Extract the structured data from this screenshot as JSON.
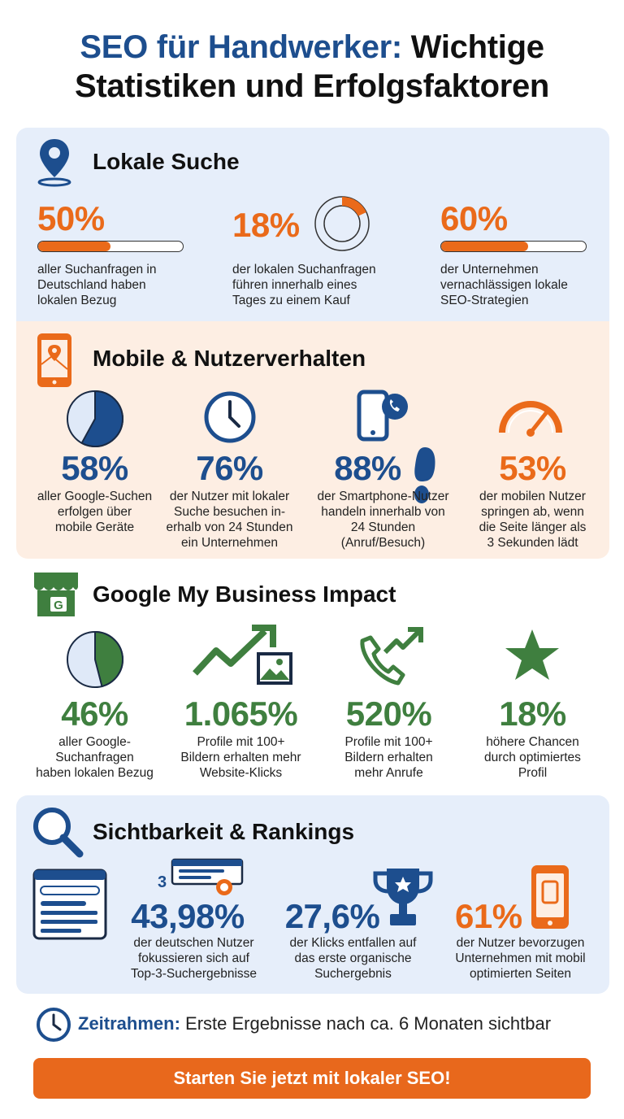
{
  "title": {
    "highlight": "SEO für Handwerker:",
    "rest_line1": " Wichtige",
    "line2": "Statistiken und Erfolgsfaktoren"
  },
  "colors": {
    "blue": "#1d4e8e",
    "orange": "#ea6a1a",
    "green": "#3f7f3f",
    "panel_blue": "#e6eefa",
    "panel_peach": "#fdeee3"
  },
  "local_search": {
    "title": "Lokale Suche",
    "icon": "map-pin-icon",
    "stats": [
      {
        "value": "50%",
        "fraction": 0.5,
        "desc": [
          "aller Suchanfragen in",
          "Deutschland haben",
          "lokalen Bezug"
        ]
      },
      {
        "value": "18%",
        "fraction": 0.18,
        "desc": [
          "der lokalen Suchanfragen",
          "führen innerhalb eines",
          "Tages zu einem Kauf"
        ]
      },
      {
        "value": "60%",
        "fraction": 0.6,
        "desc": [
          "der Unternehmen",
          "vernachlässigen lokale",
          "SEO-Strategien"
        ]
      }
    ]
  },
  "mobile": {
    "title": "Mobile & Nutzerverhalten",
    "icon": "smartphone-map-icon",
    "stats": [
      {
        "value": "58%",
        "fraction": 0.58,
        "icon": "pie-chart-icon",
        "desc": [
          "aller Google-Suchen",
          "erfolgen über",
          "mobile Geräte"
        ]
      },
      {
        "value": "76%",
        "icon": "clock-icon",
        "desc": [
          "der Nutzer mit lokaler",
          "Suche besuchen in-",
          "erhalb von 24 Stunden",
          "ein Unternehmen"
        ]
      },
      {
        "value": "88%",
        "icon": "phone-call-footprint-icon",
        "desc": [
          "der Smartphone-Nutzer",
          "handeln innerhalb von",
          "24 Stunden",
          "(Anruf/Besuch)"
        ]
      },
      {
        "value": "53%",
        "icon": "speedometer-icon",
        "desc": [
          "der mobilen Nutzer",
          "springen ab, wenn",
          "die Seite länger als",
          "3 Sekunden lädt"
        ]
      }
    ]
  },
  "gmb": {
    "title": "Google My Business Impact",
    "icon": "google-store-icon",
    "stats": [
      {
        "value": "46%",
        "fraction": 0.46,
        "icon": "pie-chart-icon",
        "desc": [
          "aller Google-",
          "Suchanfragen",
          "haben lokalen Bezug"
        ]
      },
      {
        "value": "1.065%",
        "icon": "trend-image-icon",
        "desc": [
          "Profile mit 100+",
          "Bildern erhalten mehr",
          "Website-Klicks"
        ]
      },
      {
        "value": "520%",
        "icon": "phone-trend-icon",
        "desc": [
          "Profile mit 100+",
          "Bildern erhalten",
          "mehr Anrufe"
        ]
      },
      {
        "value": "18%",
        "icon": "star-icon",
        "desc": [
          "höhere Chancen",
          "durch optimiertes",
          "Profil"
        ]
      }
    ]
  },
  "visibility": {
    "title": "Sichtbarkeit & Rankings",
    "icon": "magnifier-icon",
    "rank_number": "3",
    "stats": [
      {
        "value": "43,98%",
        "icon": "browser-results-icon",
        "desc": [
          "der deutschen Nutzer",
          "fokussieren sich auf",
          "Top-3-Suchergebnisse"
        ]
      },
      {
        "value": "27,6%",
        "icon": "trophy-icon",
        "desc": [
          "der Klicks entfallen auf",
          "das erste organische",
          "Suchergebnis"
        ]
      },
      {
        "value": "61%",
        "icon": "mobile-phone-icon",
        "desc": [
          "der Nutzer bevorzugen",
          "Unternehmen mit mobil",
          "optimierten Seiten"
        ]
      }
    ]
  },
  "footer": {
    "label": "Zeitrahmen:",
    "text": " Erste Ergebnisse nach ca. 6 Monaten sichtbar",
    "icon": "clock-icon"
  },
  "cta": {
    "label": "Starten Sie jetzt mit lokaler SEO!"
  }
}
